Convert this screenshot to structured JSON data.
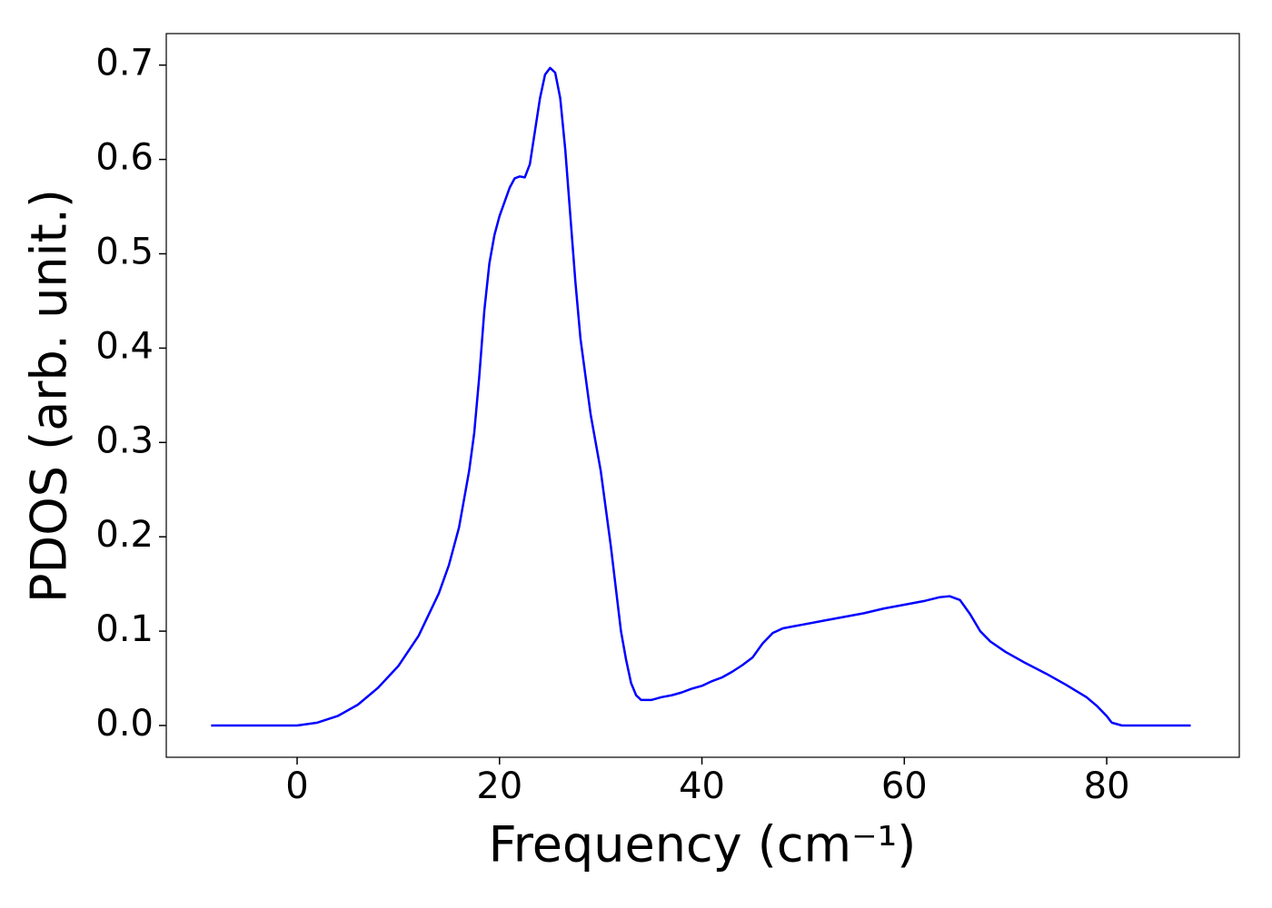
{
  "chart_data": {
    "type": "line",
    "xlabel": "Frequency (cm⁻¹)",
    "ylabel": "PDOS (arb. unit.)",
    "xlim": [
      -12.93,
      93.1
    ],
    "ylim": [
      -0.0337,
      0.7334
    ],
    "xticks": [
      0,
      20,
      40,
      60,
      80
    ],
    "yticks": [
      {
        "value": 0,
        "label": "0.0"
      },
      0.1,
      0.2,
      0.3,
      0.4,
      0.5,
      0.6,
      0.7
    ],
    "grid": false,
    "x": [
      -8.5,
      0,
      2,
      4,
      6,
      8,
      10,
      12,
      14,
      15,
      16,
      17,
      17.5,
      18,
      18.5,
      19,
      19.5,
      20,
      21,
      21.5,
      22,
      22.5,
      23,
      23.5,
      24,
      24.5,
      25,
      25.5,
      26,
      26.5,
      27,
      27.5,
      28,
      29,
      30,
      31,
      32,
      32.5,
      33,
      33.5,
      34,
      35,
      36,
      37,
      38,
      39,
      40,
      41,
      42,
      43,
      44,
      45,
      46,
      47,
      48,
      49,
      50,
      52,
      54,
      56,
      58,
      60,
      62,
      63.5,
      64.5,
      65.5,
      66.5,
      67.5,
      68.5,
      70,
      72,
      74,
      76,
      78,
      79,
      80,
      80.5,
      81.5,
      88.3
    ],
    "series": [
      {
        "name": "PDOS",
        "color": "#0000ff",
        "values": [
          0,
          0,
          0.003,
          0.01,
          0.022,
          0.04,
          0.063,
          0.095,
          0.14,
          0.17,
          0.21,
          0.27,
          0.31,
          0.37,
          0.44,
          0.49,
          0.52,
          0.54,
          0.57,
          0.58,
          0.582,
          0.581,
          0.595,
          0.63,
          0.665,
          0.69,
          0.697,
          0.692,
          0.665,
          0.61,
          0.54,
          0.47,
          0.41,
          0.33,
          0.27,
          0.19,
          0.1,
          0.07,
          0.045,
          0.032,
          0.027,
          0.027,
          0.03,
          0.032,
          0.035,
          0.039,
          0.042,
          0.047,
          0.051,
          0.057,
          0.064,
          0.072,
          0.087,
          0.098,
          0.103,
          0.105,
          0.107,
          0.111,
          0.115,
          0.119,
          0.124,
          0.128,
          0.132,
          0.136,
          0.137,
          0.133,
          0.118,
          0.1,
          0.089,
          0.078,
          0.066,
          0.055,
          0.043,
          0.03,
          0.021,
          0.01,
          0.003,
          0,
          0
        ]
      }
    ]
  }
}
